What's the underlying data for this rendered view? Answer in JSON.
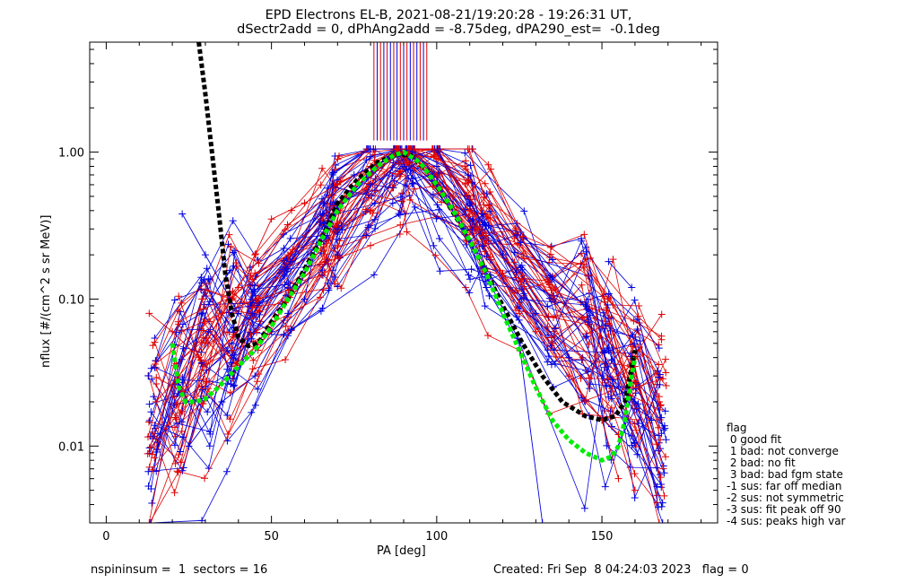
{
  "chart_data": {
    "type": "line",
    "title": "EPD Electrons EL-B, 2021-08-21/19:20:28 - 19:26:31 UT,",
    "subtitle": "dSectr2add = 0, dPhAng2add = -8.75deg, dPA290_est=  -0.1deg",
    "xlabel": "PA [deg]",
    "ylabel": "nflux [#/(cm^2 s sr MeV)]",
    "xlim": [
      -5,
      185
    ],
    "ylim": [
      0.003,
      5.6
    ],
    "yscale": "log",
    "x_ticks": [
      0,
      50,
      100,
      150
    ],
    "x_tick_labels": [
      "0",
      "50",
      "100",
      "150"
    ],
    "y_ticks": [
      0.01,
      0.1,
      1.0
    ],
    "y_tick_labels": [
      "0.01",
      "0.10",
      "1.00"
    ],
    "grid": false,
    "legend_position": "outside-right-bottom",
    "colors": {
      "red": "#e00000",
      "blue": "#0000e0",
      "black": "#000000",
      "green": "#00ee00"
    },
    "series": [
      {
        "color": "red",
        "style": "thin-lines-plus-markers",
        "points": [
          [
            13,
            0.08
          ],
          [
            20,
            0.06
          ],
          [
            28,
            0.04
          ],
          [
            35,
            0.08
          ],
          [
            40,
            0.12
          ],
          [
            45,
            0.2
          ],
          [
            50,
            0.35
          ],
          [
            60,
            0.45
          ],
          [
            70,
            0.6
          ],
          [
            80,
            0.8
          ],
          [
            90,
            1.0
          ],
          [
            100,
            0.7
          ],
          [
            110,
            0.4
          ],
          [
            115,
            0.25
          ],
          [
            125,
            0.08
          ],
          [
            135,
            0.05
          ],
          [
            145,
            0.02
          ],
          [
            155,
            0.012
          ],
          [
            160,
            0.005
          ]
        ]
      },
      {
        "color": "red",
        "style": "thin-lines-plus-markers",
        "points": [
          [
            15,
            0.02
          ],
          [
            22,
            0.03
          ],
          [
            30,
            0.05
          ],
          [
            38,
            0.1
          ],
          [
            45,
            0.15
          ],
          [
            55,
            0.2
          ],
          [
            65,
            0.35
          ],
          [
            72,
            0.5
          ],
          [
            80,
            0.7
          ],
          [
            88,
            0.95
          ],
          [
            95,
            0.8
          ],
          [
            105,
            0.5
          ],
          [
            112,
            0.3
          ],
          [
            120,
            0.15
          ],
          [
            130,
            0.06
          ],
          [
            140,
            0.03
          ],
          [
            150,
            0.015
          ],
          [
            155,
            0.006
          ]
        ]
      },
      {
        "color": "blue",
        "style": "thin-lines-plus-markers",
        "points": [
          [
            23,
            0.38
          ],
          [
            30,
            0.2
          ],
          [
            40,
            0.08
          ],
          [
            50,
            0.06
          ],
          [
            60,
            0.1
          ],
          [
            66,
            0.45
          ],
          [
            75,
            0.7
          ],
          [
            85,
            0.9
          ],
          [
            90,
            0.95
          ],
          [
            100,
            0.8
          ],
          [
            110,
            0.45
          ],
          [
            120,
            0.2
          ],
          [
            130,
            0.08
          ],
          [
            140,
            0.04
          ],
          [
            150,
            0.03
          ],
          [
            160,
            0.02
          ],
          [
            165,
            0.015
          ]
        ]
      },
      {
        "color": "blue",
        "style": "thin-lines-plus-markers",
        "points": [
          [
            25,
            0.01
          ],
          [
            35,
            0.02
          ],
          [
            45,
            0.03
          ],
          [
            55,
            0.08
          ],
          [
            66,
            0.3
          ],
          [
            70,
            0.2
          ],
          [
            80,
            0.6
          ],
          [
            90,
            0.8
          ],
          [
            100,
            0.6
          ],
          [
            108,
            0.3
          ],
          [
            115,
            0.12
          ],
          [
            125,
            0.05
          ],
          [
            132,
            0.003
          ],
          [
            150,
            0.003
          ],
          [
            160,
            0.003
          ]
        ]
      },
      {
        "color": "blue",
        "style": "thin-lines-plus-markers",
        "points": [
          [
            152,
            0.18
          ],
          [
            159,
            0.12
          ]
        ]
      },
      {
        "color": "black",
        "style": "thick-dashed",
        "points": [
          [
            28,
            5.6
          ],
          [
            30,
            2.5
          ],
          [
            32,
            1.0
          ],
          [
            34,
            0.4
          ],
          [
            36,
            0.15
          ],
          [
            38,
            0.08
          ],
          [
            40,
            0.055
          ],
          [
            43,
            0.048
          ],
          [
            46,
            0.05
          ],
          [
            50,
            0.07
          ],
          [
            55,
            0.1
          ],
          [
            60,
            0.16
          ],
          [
            66,
            0.28
          ],
          [
            70,
            0.45
          ],
          [
            76,
            0.65
          ],
          [
            82,
            0.85
          ],
          [
            88,
            0.97
          ],
          [
            92,
            0.95
          ],
          [
            97,
            0.75
          ],
          [
            102,
            0.5
          ],
          [
            108,
            0.3
          ],
          [
            114,
            0.17
          ],
          [
            120,
            0.09
          ],
          [
            126,
            0.05
          ],
          [
            132,
            0.03
          ],
          [
            138,
            0.02
          ],
          [
            145,
            0.016
          ],
          [
            150,
            0.015
          ],
          [
            154,
            0.016
          ],
          [
            157,
            0.02
          ],
          [
            160,
            0.045
          ]
        ]
      },
      {
        "color": "green",
        "style": "thick-dashed",
        "points": [
          [
            20,
            0.05
          ],
          [
            21,
            0.035
          ],
          [
            22,
            0.025
          ],
          [
            24,
            0.02
          ],
          [
            27,
            0.02
          ],
          [
            30,
            0.021
          ],
          [
            33,
            0.024
          ],
          [
            36,
            0.028
          ],
          [
            40,
            0.035
          ],
          [
            45,
            0.045
          ],
          [
            50,
            0.065
          ],
          [
            55,
            0.1
          ],
          [
            60,
            0.15
          ],
          [
            65,
            0.25
          ],
          [
            70,
            0.4
          ],
          [
            76,
            0.6
          ],
          [
            82,
            0.8
          ],
          [
            87,
            0.95
          ],
          [
            90,
            1.0
          ],
          [
            95,
            0.85
          ],
          [
            100,
            0.6
          ],
          [
            105,
            0.4
          ],
          [
            110,
            0.25
          ],
          [
            115,
            0.15
          ],
          [
            120,
            0.08
          ],
          [
            125,
            0.045
          ],
          [
            130,
            0.025
          ],
          [
            135,
            0.015
          ],
          [
            140,
            0.011
          ],
          [
            145,
            0.009
          ],
          [
            150,
            0.008
          ],
          [
            153,
            0.0085
          ],
          [
            155,
            0.01
          ],
          [
            157,
            0.015
          ],
          [
            159,
            0.03
          ],
          [
            160,
            0.04
          ]
        ]
      }
    ],
    "vertical_lines": [
      {
        "color": "red",
        "x": [
          81,
          83,
          85,
          87,
          89,
          91,
          93,
          95,
          97
        ],
        "y_from": 1.2,
        "y_to": 5.6
      },
      {
        "color": "blue",
        "x": [
          82,
          84,
          86,
          88,
          90,
          92,
          94,
          96
        ],
        "y_from": 1.2,
        "y_to": 5.6
      }
    ],
    "legend": {
      "title": "flag",
      "entries": [
        " 0 good fit",
        " 1 bad: not converge",
        " 2 bad: no fit",
        " 3 bad: bad fgm state",
        "-1 sus: far off median",
        "-2 sus: not symmetric",
        "-3 sus: fit peak off 90",
        "-4 sus: peaks high var"
      ]
    }
  },
  "footer": {
    "left": "nspininsum =  1  sectors = 16",
    "right": "Created: Fri Sep  8 04:24:03 2023   flag = 0"
  }
}
